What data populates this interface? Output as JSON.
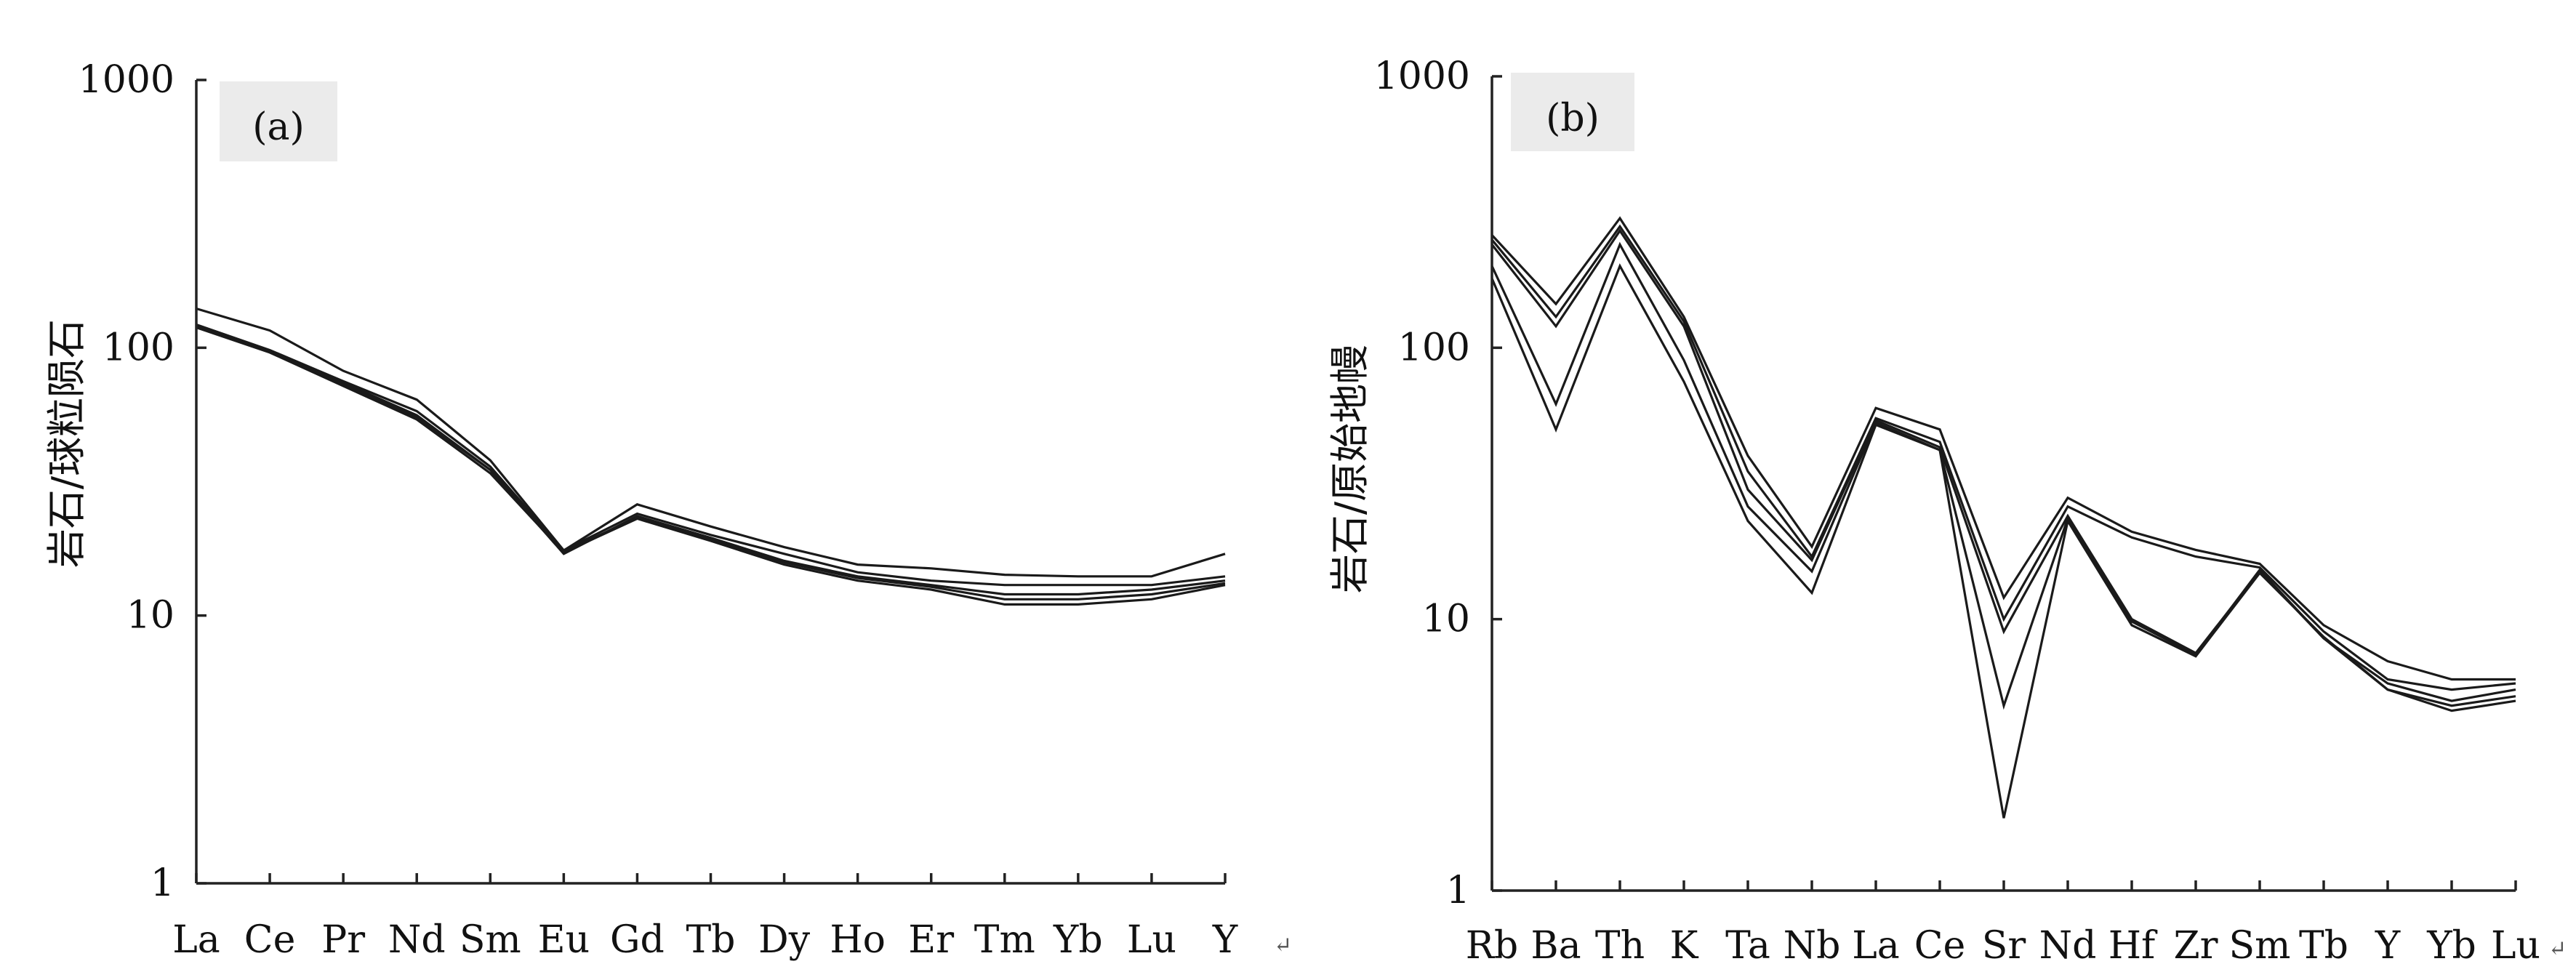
{
  "page_marks": [
    "↵",
    "↵"
  ],
  "chart_data": [
    {
      "type": "line",
      "panel_label": "(a)",
      "ylabel": "岩石/球粒陨石",
      "yscale": "log",
      "ylim": [
        1,
        1000
      ],
      "yticks": [
        "1",
        "10",
        "100",
        "1000"
      ],
      "yticks_values": [
        1,
        10,
        100,
        1000
      ],
      "categories": [
        "La",
        "Ce",
        "Pr",
        "Nd",
        "Sm",
        "Eu",
        "Gd",
        "Tb",
        "Dy",
        "Ho",
        "Er",
        "Tm",
        "Yb",
        "Lu",
        "Y"
      ],
      "series": [
        {
          "values": [
            140,
            116,
            82,
            64,
            38,
            17.5,
            26,
            21.5,
            18,
            15.5,
            15,
            14.2,
            14,
            14,
            17
          ]
        },
        {
          "values": [
            122,
            98,
            75,
            58,
            36,
            17.5,
            24,
            20,
            17,
            14.5,
            13.5,
            13,
            13,
            13,
            14
          ]
        },
        {
          "values": [
            120,
            97,
            74,
            56,
            35,
            17,
            23.5,
            19.5,
            16,
            14,
            13,
            12,
            12,
            12.5,
            13.5
          ]
        },
        {
          "values": [
            119,
            96,
            72,
            54,
            34,
            17.2,
            23,
            19,
            15.5,
            13.5,
            12.5,
            11,
            11,
            11.5,
            13
          ]
        },
        {
          "values": [
            121,
            97,
            73,
            55,
            35,
            17.3,
            23.2,
            19.2,
            15.8,
            13.8,
            12.8,
            11.5,
            11.5,
            12,
            13.2
          ]
        }
      ]
    },
    {
      "type": "line",
      "panel_label": "(b)",
      "ylabel": "岩石/原始地幔",
      "yscale": "log",
      "ylim": [
        1,
        1000
      ],
      "yticks": [
        "1",
        "10",
        "100",
        "1000"
      ],
      "yticks_values": [
        1,
        10,
        100,
        1000
      ],
      "categories": [
        "Rb",
        "Ba",
        "Th",
        "K",
        "Ta",
        "Nb",
        "La",
        "Ce",
        "Sr",
        "Nd",
        "Hf",
        "Zr",
        "Sm",
        "Tb",
        "Y",
        "Yb",
        "Lu"
      ],
      "series": [
        {
          "values": [
            260,
            145,
            300,
            130,
            40,
            18.5,
            60,
            50,
            12,
            28,
            21,
            18,
            16,
            9.5,
            7,
            6,
            6
          ]
        },
        {
          "values": [
            250,
            130,
            280,
            125,
            35,
            17,
            55,
            45,
            10,
            26,
            20,
            17,
            15.5,
            9,
            6,
            5.5,
            5.8
          ]
        },
        {
          "values": [
            240,
            120,
            270,
            120,
            30,
            16.5,
            54,
            43,
            9,
            24,
            10,
            7.5,
            15,
            8.5,
            5.8,
            5,
            5.5
          ]
        },
        {
          "values": [
            200,
            62,
            240,
            90,
            26,
            15,
            53,
            42,
            4.8,
            23.5,
            9.8,
            7.4,
            15.2,
            8.5,
            5.5,
            4.8,
            5.2
          ]
        },
        {
          "values": [
            180,
            50,
            200,
            75,
            23,
            12.5,
            52,
            42,
            1.85,
            23,
            9.5,
            7.3,
            14.8,
            8.6,
            5.5,
            4.6,
            5
          ]
        }
      ]
    }
  ]
}
